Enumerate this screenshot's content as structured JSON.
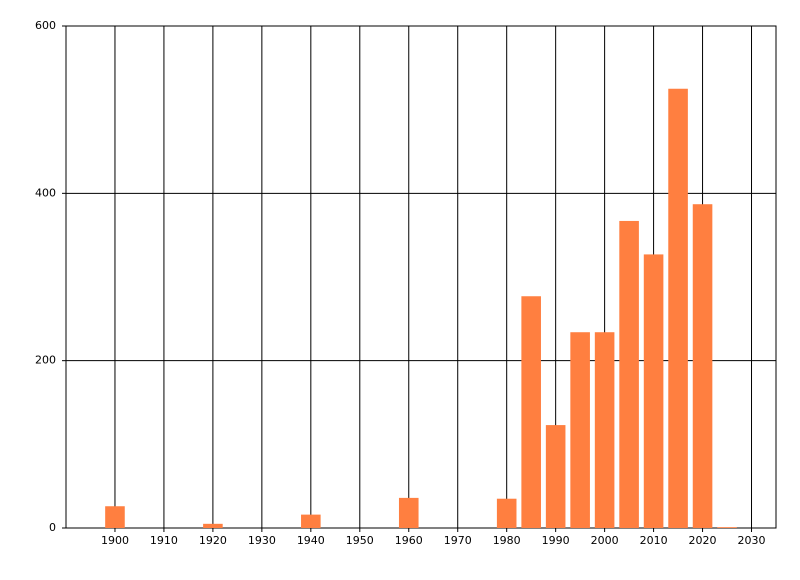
{
  "chart_data": {
    "type": "bar",
    "x": [
      1900,
      1920,
      1940,
      1960,
      1980,
      1985,
      1990,
      1995,
      2000,
      2005,
      2010,
      2015,
      2020,
      2025
    ],
    "values": [
      26,
      5,
      16,
      36,
      35,
      277,
      123,
      234,
      234,
      367,
      327,
      525,
      387,
      1
    ],
    "color": "#ff7f40",
    "xlim": [
      1890,
      2035
    ],
    "xticks": [
      1900,
      1910,
      1920,
      1930,
      1940,
      1950,
      1960,
      1970,
      1980,
      1990,
      2000,
      2010,
      2020,
      2030
    ],
    "ylim": [
      0,
      600
    ],
    "yticks": [
      0,
      200,
      400,
      600
    ],
    "grid": true
  }
}
